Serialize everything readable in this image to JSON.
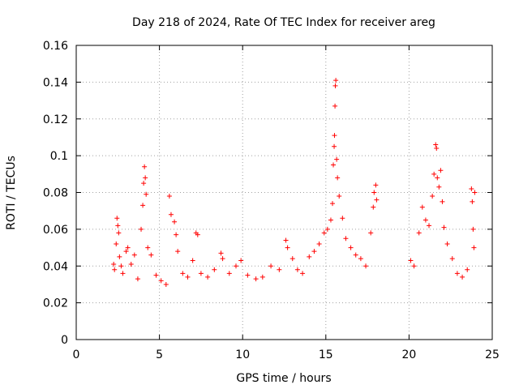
{
  "chart_data": {
    "type": "scatter",
    "title": "Day 218 of 2024, Rate Of TEC Index for receiver areg",
    "xlabel": "GPS time / hours",
    "ylabel": "ROTI / TECUs",
    "xlim": [
      0,
      25
    ],
    "ylim": [
      0,
      0.16
    ],
    "x_ticks": [
      0,
      5,
      10,
      15,
      20,
      25
    ],
    "x_tick_labels": [
      "0",
      "5",
      "10",
      "15",
      "20",
      "25"
    ],
    "y_ticks": [
      0,
      0.02,
      0.04,
      0.06,
      0.08,
      0.1,
      0.12,
      0.14,
      0.16
    ],
    "y_tick_labels": [
      "0",
      "0.02",
      "0.04",
      "0.06",
      "0.08",
      "0.1",
      "0.12",
      "0.14",
      "0.16"
    ],
    "grid": true,
    "marker": "+",
    "color": "#ff0000",
    "series": [
      {
        "name": "ROTI",
        "points": [
          [
            2.25,
            0.041
          ],
          [
            2.3,
            0.038
          ],
          [
            2.4,
            0.052
          ],
          [
            2.45,
            0.066
          ],
          [
            2.5,
            0.062
          ],
          [
            2.55,
            0.058
          ],
          [
            2.6,
            0.045
          ],
          [
            2.7,
            0.04
          ],
          [
            2.8,
            0.036
          ],
          [
            3.0,
            0.048
          ],
          [
            3.1,
            0.05
          ],
          [
            3.3,
            0.041
          ],
          [
            3.5,
            0.046
          ],
          [
            3.7,
            0.033
          ],
          [
            3.9,
            0.06
          ],
          [
            4.0,
            0.073
          ],
          [
            4.05,
            0.085
          ],
          [
            4.1,
            0.094
          ],
          [
            4.15,
            0.088
          ],
          [
            4.2,
            0.079
          ],
          [
            4.3,
            0.05
          ],
          [
            4.5,
            0.046
          ],
          [
            4.8,
            0.035
          ],
          [
            5.1,
            0.032
          ],
          [
            5.4,
            0.03
          ],
          [
            5.6,
            0.078
          ],
          [
            5.7,
            0.068
          ],
          [
            5.9,
            0.064
          ],
          [
            6.0,
            0.057
          ],
          [
            6.1,
            0.048
          ],
          [
            6.4,
            0.036
          ],
          [
            6.7,
            0.034
          ],
          [
            7.0,
            0.043
          ],
          [
            7.2,
            0.058
          ],
          [
            7.3,
            0.057
          ],
          [
            7.5,
            0.036
          ],
          [
            7.9,
            0.034
          ],
          [
            8.3,
            0.038
          ],
          [
            8.7,
            0.047
          ],
          [
            8.8,
            0.044
          ],
          [
            9.2,
            0.036
          ],
          [
            9.6,
            0.04
          ],
          [
            9.9,
            0.043
          ],
          [
            10.3,
            0.035
          ],
          [
            10.8,
            0.033
          ],
          [
            11.2,
            0.034
          ],
          [
            11.7,
            0.04
          ],
          [
            12.2,
            0.038
          ],
          [
            12.6,
            0.054
          ],
          [
            12.7,
            0.05
          ],
          [
            13.0,
            0.044
          ],
          [
            13.3,
            0.038
          ],
          [
            13.6,
            0.036
          ],
          [
            14.0,
            0.045
          ],
          [
            14.3,
            0.048
          ],
          [
            14.6,
            0.052
          ],
          [
            14.9,
            0.058
          ],
          [
            15.1,
            0.06
          ],
          [
            15.3,
            0.065
          ],
          [
            15.4,
            0.074
          ],
          [
            15.45,
            0.095
          ],
          [
            15.5,
            0.105
          ],
          [
            15.52,
            0.111
          ],
          [
            15.55,
            0.127
          ],
          [
            15.57,
            0.138
          ],
          [
            15.6,
            0.141
          ],
          [
            15.65,
            0.098
          ],
          [
            15.7,
            0.088
          ],
          [
            15.8,
            0.078
          ],
          [
            16.0,
            0.066
          ],
          [
            16.2,
            0.055
          ],
          [
            16.5,
            0.05
          ],
          [
            16.8,
            0.046
          ],
          [
            17.1,
            0.044
          ],
          [
            17.4,
            0.04
          ],
          [
            17.7,
            0.058
          ],
          [
            17.85,
            0.072
          ],
          [
            17.9,
            0.08
          ],
          [
            18.0,
            0.084
          ],
          [
            18.05,
            0.076
          ],
          [
            20.1,
            0.043
          ],
          [
            20.3,
            0.04
          ],
          [
            20.6,
            0.058
          ],
          [
            20.8,
            0.072
          ],
          [
            21.0,
            0.065
          ],
          [
            21.2,
            0.062
          ],
          [
            21.4,
            0.078
          ],
          [
            21.5,
            0.09
          ],
          [
            21.6,
            0.106
          ],
          [
            21.65,
            0.104
          ],
          [
            21.7,
            0.088
          ],
          [
            21.8,
            0.083
          ],
          [
            21.9,
            0.092
          ],
          [
            22.0,
            0.075
          ],
          [
            22.1,
            0.061
          ],
          [
            22.3,
            0.052
          ],
          [
            22.6,
            0.044
          ],
          [
            22.9,
            0.036
          ],
          [
            23.2,
            0.034
          ],
          [
            23.5,
            0.038
          ],
          [
            23.75,
            0.082
          ],
          [
            23.8,
            0.075
          ],
          [
            23.85,
            0.06
          ],
          [
            23.9,
            0.05
          ],
          [
            23.95,
            0.08
          ]
        ]
      }
    ]
  }
}
